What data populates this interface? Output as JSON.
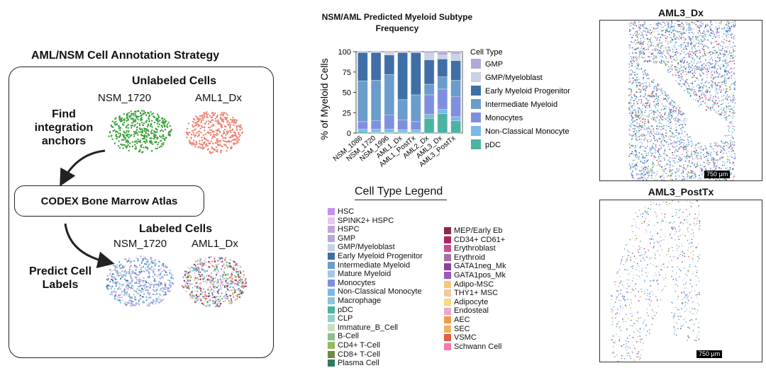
{
  "strategy": {
    "title": "AML/NSM Cell Annotation Strategy",
    "unlabeled_title": "Unlabeled Cells",
    "labeled_title": "Labeled Cells",
    "samples": [
      "NSM_1720",
      "AML1_Dx"
    ],
    "step1": "Find integration anchors",
    "atlas": "CODEX Bone Marrow Atlas",
    "step2": "Predict Cell Labels",
    "colors": {
      "nsm_unlabeled": "#3aa03a",
      "aml_unlabeled": "#f08070"
    }
  },
  "chart_data": {
    "type": "bar",
    "stacked": true,
    "title": "NSM/AML Predicted Myeloid Subtype Frequency",
    "xlabel": "",
    "ylabel": "% of Myeloid Cells",
    "ylim": [
      0,
      100
    ],
    "yticks": [
      "0",
      "25",
      "50",
      "75",
      "100"
    ],
    "categories": [
      "NSM_1086",
      "NSM_1720",
      "NSM_1996",
      "AML1_Dx",
      "AML1_PostTx",
      "AML2_Dx",
      "AML3_Dx",
      "AML3_PostTx"
    ],
    "legend_title": "Cell Type",
    "series": [
      {
        "name": "pDC",
        "color": "#4cb3a3",
        "values": [
          2,
          1,
          1,
          1,
          1,
          18,
          24,
          15
        ]
      },
      {
        "name": "Non-Classical Monocyte",
        "color": "#7ab9e8",
        "values": [
          3,
          4,
          4,
          3,
          3,
          5,
          5,
          5
        ]
      },
      {
        "name": "Monocytes",
        "color": "#7f8fe0",
        "values": [
          9,
          10,
          17,
          12,
          10,
          24,
          25,
          25
        ]
      },
      {
        "name": "Intermediate Myeloid",
        "color": "#6a9ccc",
        "values": [
          50,
          50,
          50,
          25,
          33,
          13,
          15,
          20
        ]
      },
      {
        "name": "Early Myeloid Progenitor",
        "color": "#3f6fa6",
        "values": [
          35,
          34,
          24,
          58,
          52,
          30,
          22,
          24
        ]
      },
      {
        "name": "GMP/Myeloblast",
        "color": "#c8d3e6",
        "values": [
          1,
          1,
          3,
          1,
          1,
          8,
          5,
          8
        ]
      },
      {
        "name": "GMP",
        "color": "#b5a8d8",
        "values": [
          0,
          0,
          1,
          0,
          0,
          2,
          4,
          3
        ]
      }
    ],
    "legend_order": [
      "GMP",
      "GMP/Myeloblast",
      "Early Myeloid Progenitor",
      "Intermediate Myeloid",
      "Monocytes",
      "Non-Classical Monocyte",
      "pDC"
    ]
  },
  "cell_legend": {
    "title": "Cell Type Legend",
    "col1": [
      {
        "label": "HSC",
        "color": "#c98ef0"
      },
      {
        "label": "SPINK2+ HSPC",
        "color": "#e6c8ee"
      },
      {
        "label": "HSPC",
        "color": "#c3a6d8"
      },
      {
        "label": "GMP",
        "color": "#b5a8d8"
      },
      {
        "label": "GMP/Myeloblast",
        "color": "#c8d3e6"
      },
      {
        "label": "Early Myeloid Progenitor",
        "color": "#3f6fa6"
      },
      {
        "label": "Intermediate Myeloid",
        "color": "#6a9ccc"
      },
      {
        "label": "Mature Myeloid",
        "color": "#a9c6e6"
      },
      {
        "label": "Monocytes",
        "color": "#7f8fe0"
      },
      {
        "label": "Non-Classical Monocyte",
        "color": "#7ab9e8"
      },
      {
        "label": "Macrophage",
        "color": "#8ec4d8"
      },
      {
        "label": "pDC",
        "color": "#4cb3a3"
      },
      {
        "label": "CLP",
        "color": "#8fd0c8"
      },
      {
        "label": "Immature_B_Cell",
        "color": "#c7e0c4"
      },
      {
        "label": "B-Cell",
        "color": "#8dbf8a"
      },
      {
        "label": "CD4+ T-Cell",
        "color": "#98b860"
      },
      {
        "label": "CD8+ T-Cell",
        "color": "#6f8a45"
      },
      {
        "label": "Plasma Cell",
        "color": "#2e7a5e"
      }
    ],
    "col2": [
      {
        "label": "MEP/Early Eb",
        "color": "#8a2a4a"
      },
      {
        "label": "CD34+ CD61+",
        "color": "#b0245e"
      },
      {
        "label": "Erythroblast",
        "color": "#c94f8c"
      },
      {
        "label": "Erythroid",
        "color": "#a86fa8"
      },
      {
        "label": "GATA1neg_Mk",
        "color": "#8f3f9e"
      },
      {
        "label": "GATA1pos_Mk",
        "color": "#9b5ab5"
      },
      {
        "label": "Adipo-MSC",
        "color": "#f3c97a"
      },
      {
        "label": "THY1+ MSC",
        "color": "#f6c6a6"
      },
      {
        "label": "Adipocyte",
        "color": "#f3dc7a"
      },
      {
        "label": "Endosteal",
        "color": "#f0a8c8"
      },
      {
        "label": "AEC",
        "color": "#f39a4a"
      },
      {
        "label": "SEC",
        "color": "#f2b25a"
      },
      {
        "label": "VSMC",
        "color": "#e85a4a"
      },
      {
        "label": "Schwann Cell",
        "color": "#f27ab0"
      }
    ]
  },
  "panels": {
    "dx_title": "AML3_Dx",
    "posttx_title": "AML3_PostTx",
    "scalebar": "750 μm"
  }
}
